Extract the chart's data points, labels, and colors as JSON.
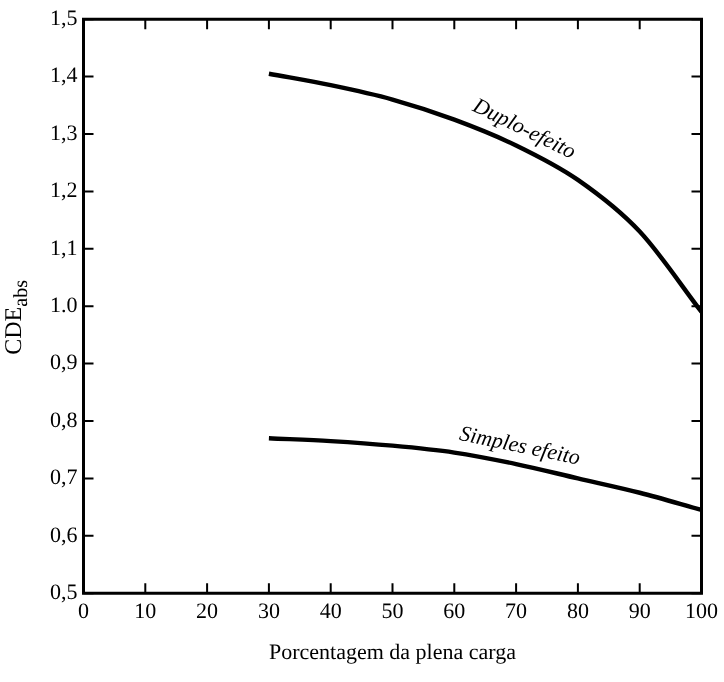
{
  "chart_data": {
    "type": "line",
    "xlabel": "Porcentagem da plena carga",
    "ylabel": "CDE$_{abs}$",
    "x": [
      30,
      40,
      50,
      60,
      70,
      80,
      90,
      100
    ],
    "series": [
      {
        "name": "Duplo-efeito",
        "color": "#000000",
        "values": [
          1.405,
          1.385,
          1.36,
          1.325,
          1.28,
          1.22,
          1.13,
          0.99
        ]
      },
      {
        "name": "Simples efeito",
        "color": "#000000",
        "values": [
          0.77,
          0.765,
          0.757,
          0.745,
          0.725,
          0.7,
          0.675,
          0.645
        ]
      }
    ],
    "xlim": [
      0,
      100
    ],
    "xticks": [
      0,
      10,
      20,
      30,
      40,
      50,
      60,
      70,
      80,
      90,
      100
    ],
    "ylim": [
      0.5,
      1.5
    ],
    "yticks": [
      {
        "value": 0.5,
        "label": "0,5"
      },
      {
        "value": 0.6,
        "label": "0,6"
      },
      {
        "value": 0.7,
        "label": "0,7"
      },
      {
        "value": 0.8,
        "label": "0,8"
      },
      {
        "value": 0.9,
        "label": "0,9"
      },
      {
        "value": 1.0,
        "label": "1.0"
      },
      {
        "value": 1.1,
        "label": "1,1"
      },
      {
        "value": 1.2,
        "label": "1,2"
      },
      {
        "value": 1.3,
        "label": "1,3"
      },
      {
        "value": 1.4,
        "label": "1,4"
      },
      {
        "value": 1.5,
        "label": "1,5"
      }
    ],
    "grid": false,
    "legend": false,
    "marker": "none",
    "line_style": "solid"
  }
}
